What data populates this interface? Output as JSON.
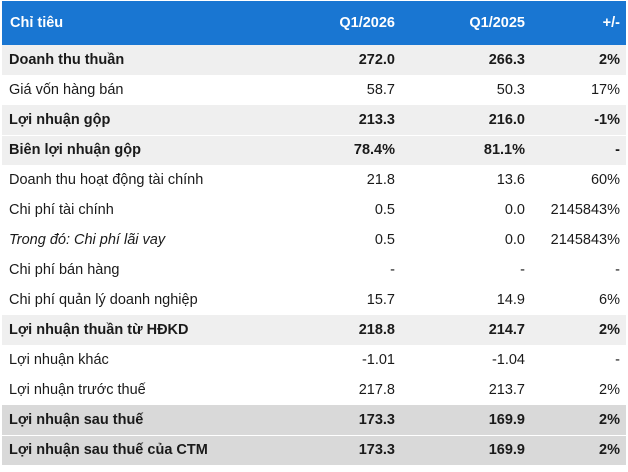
{
  "table": {
    "headers": [
      "Chỉ tiêu",
      "Q1/2026",
      "Q1/2025",
      "+/-"
    ],
    "rows": [
      {
        "label": "Doanh thu thuần",
        "q1_2026": "272.0",
        "q1_2025": "266.3",
        "change": "2%",
        "style": "bold",
        "shade": "light"
      },
      {
        "label": "Giá vốn hàng bán",
        "q1_2026": "58.7",
        "q1_2025": "50.3",
        "change": "17%",
        "style": "normal",
        "shade": "none"
      },
      {
        "label": "Lợi nhuận gộp",
        "q1_2026": "213.3",
        "q1_2025": "216.0",
        "change": "-1%",
        "style": "bold",
        "shade": "light"
      },
      {
        "label": "Biên lợi nhuận gộp",
        "q1_2026": "78.4%",
        "q1_2025": "81.1%",
        "change": "-",
        "style": "bold",
        "shade": "light"
      },
      {
        "label": "Doanh thu hoạt động tài chính",
        "q1_2026": "21.8",
        "q1_2025": "13.6",
        "change": "60%",
        "style": "normal",
        "shade": "none"
      },
      {
        "label": "Chi phí tài chính",
        "q1_2026": "0.5",
        "q1_2025": "0.0",
        "change": "2145843%",
        "style": "normal",
        "shade": "none"
      },
      {
        "label": "Trong đó: Chi phí lãi vay",
        "q1_2026": "0.5",
        "q1_2025": "0.0",
        "change": "2145843%",
        "style": "italic",
        "shade": "none"
      },
      {
        "label": "Chi phí bán hàng",
        "q1_2026": "-",
        "q1_2025": "-",
        "change": "-",
        "style": "normal",
        "shade": "none"
      },
      {
        "label": "Chi phí quản lý doanh nghiệp",
        "q1_2026": "15.7",
        "q1_2025": "14.9",
        "change": "6%",
        "style": "normal",
        "shade": "none"
      },
      {
        "label": "Lợi nhuận thuần từ HĐKD",
        "q1_2026": "218.8",
        "q1_2025": "214.7",
        "change": "2%",
        "style": "bold",
        "shade": "light"
      },
      {
        "label": "Lợi nhuận khác",
        "q1_2026": "-1.01",
        "q1_2025": "-1.04",
        "change": "-",
        "style": "normal",
        "shade": "none"
      },
      {
        "label": "Lợi nhuận trước thuế",
        "q1_2026": "217.8",
        "q1_2025": "213.7",
        "change": "2%",
        "style": "normal",
        "shade": "none"
      },
      {
        "label": "Lợi nhuận sau thuế",
        "q1_2026": "173.3",
        "q1_2025": "169.9",
        "change": "2%",
        "style": "bold",
        "shade": "dark"
      },
      {
        "label": "Lợi nhuận sau thuế của CTM",
        "q1_2026": "173.3",
        "q1_2025": "169.9",
        "change": "2%",
        "style": "bold",
        "shade": "dark"
      }
    ]
  },
  "colors": {
    "header_bg": "#1976d2",
    "header_text": "#ffffff",
    "shade_light": "#efefef",
    "shade_dark": "#d9d9d9"
  }
}
